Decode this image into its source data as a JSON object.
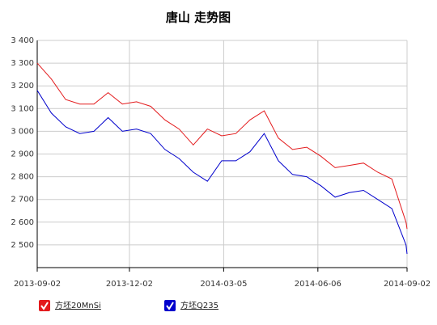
{
  "chart_data": {
    "type": "line",
    "title": "唐山 走势图",
    "x": [
      "2013-09-02",
      "2013-09-16",
      "2013-09-30",
      "2013-10-14",
      "2013-10-28",
      "2013-11-11",
      "2013-11-25",
      "2013-12-09",
      "2013-12-23",
      "2014-01-06",
      "2014-01-20",
      "2014-02-03",
      "2014-02-17",
      "2014-03-03",
      "2014-03-17",
      "2014-03-31",
      "2014-04-14",
      "2014-04-28",
      "2014-05-12",
      "2014-05-26",
      "2014-06-09",
      "2014-06-23",
      "2014-07-07",
      "2014-07-21",
      "2014-08-04",
      "2014-08-18",
      "2014-09-01",
      "2014-09-02"
    ],
    "series": [
      {
        "name": "方坯20MnSi",
        "color": "#e31a1c",
        "values": [
          3300,
          3230,
          3140,
          3120,
          3120,
          3170,
          3120,
          3130,
          3110,
          3050,
          3010,
          2940,
          3010,
          2980,
          2990,
          3050,
          3090,
          2970,
          2920,
          2930,
          2890,
          2840,
          2850,
          2860,
          2820,
          2790,
          2600,
          2570
        ]
      },
      {
        "name": "方坯Q235",
        "color": "#0000cc",
        "values": [
          3180,
          3080,
          3020,
          2990,
          3000,
          3060,
          3000,
          3010,
          2990,
          2920,
          2880,
          2820,
          2780,
          2870,
          2870,
          2910,
          2990,
          2870,
          2810,
          2800,
          2760,
          2710,
          2730,
          2740,
          2700,
          2660,
          2500,
          2460
        ]
      }
    ],
    "xlim": [
      "2013-09-02",
      "2014-09-02"
    ],
    "xticks": [
      "2013-09-02",
      "2013-12-02",
      "2014-03-05",
      "2014-06-06",
      "2014-09-02"
    ],
    "ylim": [
      2400,
      3400
    ],
    "yticks": [
      {
        "value": 2500,
        "label": "2 500"
      },
      {
        "value": 2600,
        "label": "2 600"
      },
      {
        "value": 2700,
        "label": "2 700"
      },
      {
        "value": 2800,
        "label": "2 800"
      },
      {
        "value": 2900,
        "label": "2 900"
      },
      {
        "value": 3000,
        "label": "3 000"
      },
      {
        "value": 3100,
        "label": "3 100"
      },
      {
        "value": 3200,
        "label": "3 200"
      },
      {
        "value": 3300,
        "label": "3 300"
      },
      {
        "value": 3400,
        "label": "3 400"
      }
    ],
    "grid": true
  }
}
